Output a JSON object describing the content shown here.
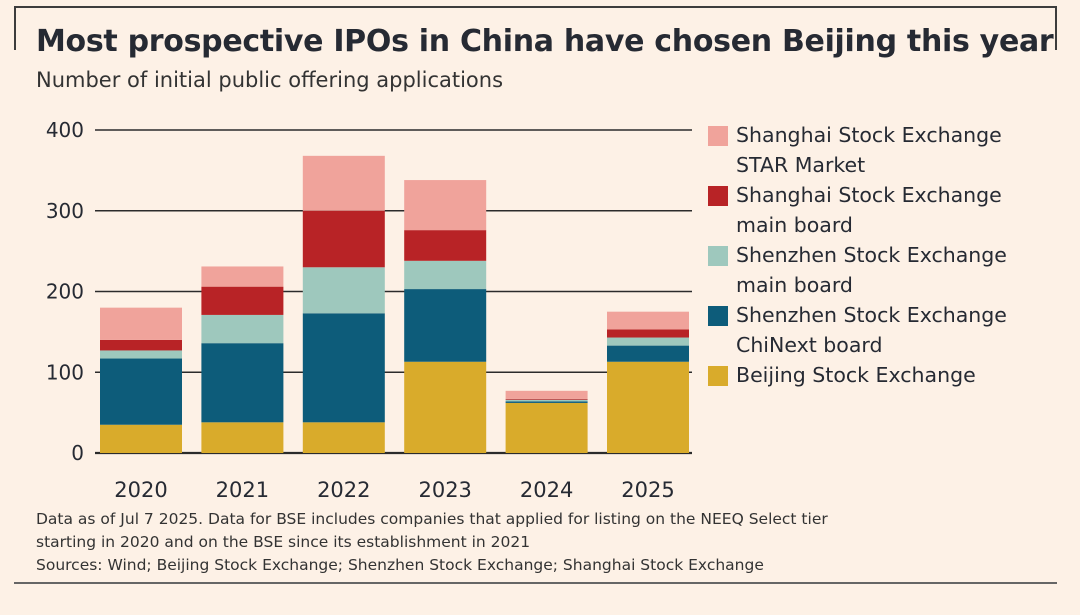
{
  "header": {
    "title": "Most prospective IPOs in China have chosen Beijing this year",
    "subtitle": "Number of initial public offering applications"
  },
  "chart_data": {
    "type": "bar",
    "stacked": true,
    "title": "Most prospective IPOs in China have chosen Beijing this year",
    "subtitle": "Number of initial public offering applications",
    "xlabel": "",
    "ylabel": "",
    "ylim": [
      0,
      400
    ],
    "yticks": [
      0,
      100,
      200,
      300,
      400
    ],
    "categories": [
      "2020",
      "2021",
      "2022",
      "2023",
      "2024",
      "2025"
    ],
    "series": [
      {
        "name": "Beijing Stock Exchange",
        "color": "#d9ab2b",
        "values": [
          35,
          38,
          38,
          113,
          62,
          113
        ]
      },
      {
        "name": "Shenzhen Stock Exchange ChiNext board",
        "color": "#0d5c7a",
        "values": [
          82,
          98,
          135,
          90,
          2,
          20
        ]
      },
      {
        "name": "Shenzhen Stock Exchange main board",
        "color": "#9ec8bd",
        "values": [
          10,
          35,
          57,
          35,
          2,
          10
        ]
      },
      {
        "name": "Shanghai Stock Exchange main board",
        "color": "#b82326",
        "values": [
          13,
          35,
          70,
          38,
          1,
          10
        ]
      },
      {
        "name": "Shanghai Stock Exchange STAR Market",
        "color": "#f0a39b",
        "values": [
          40,
          25,
          68,
          62,
          10,
          22
        ]
      }
    ],
    "legend": {
      "position": "right",
      "entries": [
        {
          "lines": [
            "Shanghai Stock Exchange",
            "STAR Market"
          ],
          "color": "#f0a39b"
        },
        {
          "lines": [
            "Shanghai Stock Exchange",
            "main board"
          ],
          "color": "#b82326"
        },
        {
          "lines": [
            "Shenzhen Stock Exchange",
            "main board"
          ],
          "color": "#9ec8bd"
        },
        {
          "lines": [
            "Shenzhen Stock Exchange",
            "ChiNext board"
          ],
          "color": "#0d5c7a"
        },
        {
          "lines": [
            "Beijing Stock Exchange"
          ],
          "color": "#d9ab2b"
        }
      ]
    },
    "grid": true
  },
  "notes": {
    "line1": "Data as of Jul 7 2025. Data for BSE includes companies that applied for listing on the NEEQ Select tier",
    "line2": "starting in 2020 and on the BSE since its establishment in 2021",
    "sources": "Sources: Wind; Beijing Stock Exchange; Shenzhen Stock Exchange; Shanghai Stock Exchange"
  }
}
